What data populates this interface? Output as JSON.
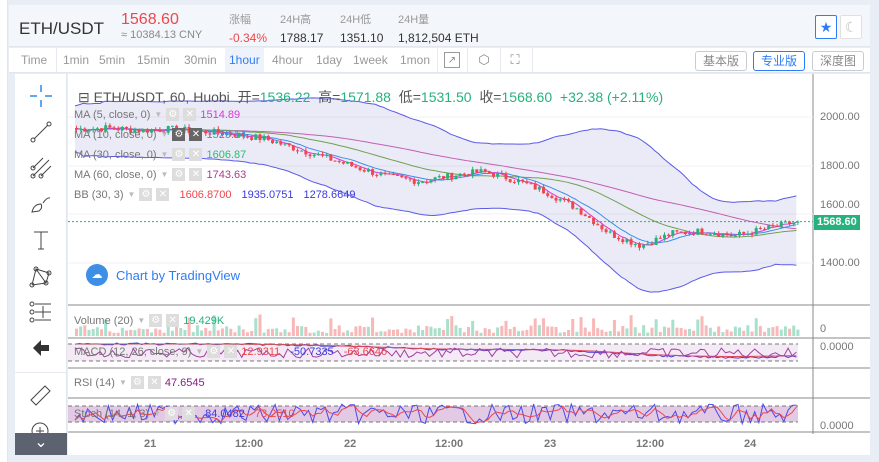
{
  "header": {
    "pair": "ETH/USDT",
    "price": "1568.60",
    "cny": "≈ 10384.13 CNY",
    "stats": [
      {
        "label": "涨幅",
        "value": "-0.34%"
      },
      {
        "label": "24H高",
        "value": "1788.17"
      },
      {
        "label": "24H低",
        "value": "1351.10"
      },
      {
        "label": "24H量",
        "value": "1,812,504 ETH"
      }
    ],
    "star_icon": "★",
    "moon_icon": "☾"
  },
  "toolbar": {
    "time_label": "Time",
    "intervals": [
      "1min",
      "5min",
      "15min",
      "30min",
      "1hour",
      "4hour",
      "1day",
      "1week",
      "1mon"
    ],
    "active_interval": "1hour",
    "views": [
      "基本版",
      "专业版",
      "深度图"
    ],
    "active_view": "专业版"
  },
  "chart": {
    "title": "ETH/USDT, 60, Huobi",
    "open_label": "开=",
    "open": "1536.22",
    "high_label": "高=",
    "high": "1571.88",
    "low_label": "低=",
    "low": "1531.50",
    "close_label": "收=",
    "close": "1568.60",
    "change": "+32.38 (+2.11%)",
    "indicators": [
      {
        "name": "MA (5, close, 0)",
        "value": "1514.89",
        "color": "#d63ad6"
      },
      {
        "name": "MA (10, close, 0)",
        "value": "1529.14",
        "color": "#3a8ee6"
      },
      {
        "name": "MA (30, close, 0)",
        "value": "1606.87",
        "color": "#26c26a"
      },
      {
        "name": "MA (60, close, 0)",
        "value": "1743.63",
        "color": "#b03a8a"
      }
    ],
    "bb": {
      "name": "BB (30, 3)",
      "values": [
        "1606.8700",
        "1935.0751",
        "1278.6649"
      ]
    },
    "brand": "Chart by TradingView",
    "price_ticks": [
      "2000.00",
      "1800.00",
      "1600.00",
      "1400.00"
    ],
    "current_price": "1568.60",
    "volume": {
      "name": "Volume (20)",
      "value": "19.429K",
      "tick": "0"
    },
    "macd": {
      "name": "MACD (12, 26, close, 9)",
      "values": [
        "12.9311",
        "-50.7335",
        "-63.6646"
      ],
      "tick": "0.0000"
    },
    "rsi": {
      "name": "RSI (14)",
      "value": "47.6545"
    },
    "stoch": {
      "name": "Stoch (14, 1, 3)",
      "values": [
        "84.0482",
        "73.2510"
      ],
      "tick": "0.0000"
    },
    "time_ticks": [
      "21",
      "12:00",
      "22",
      "12:00",
      "23",
      "12:00",
      "24"
    ],
    "anchors": [
      1950,
      1955,
      1945,
      1950,
      1940,
      1930,
      1910,
      1870,
      1830,
      1790,
      1750,
      1735,
      1760,
      1775,
      1740,
      1690,
      1620,
      1520,
      1470,
      1520,
      1530,
      1510,
      1540,
      1568.6
    ],
    "colors": {
      "up": "#26b27c",
      "down": "#f0464c",
      "band": "#5a5ae8"
    }
  }
}
